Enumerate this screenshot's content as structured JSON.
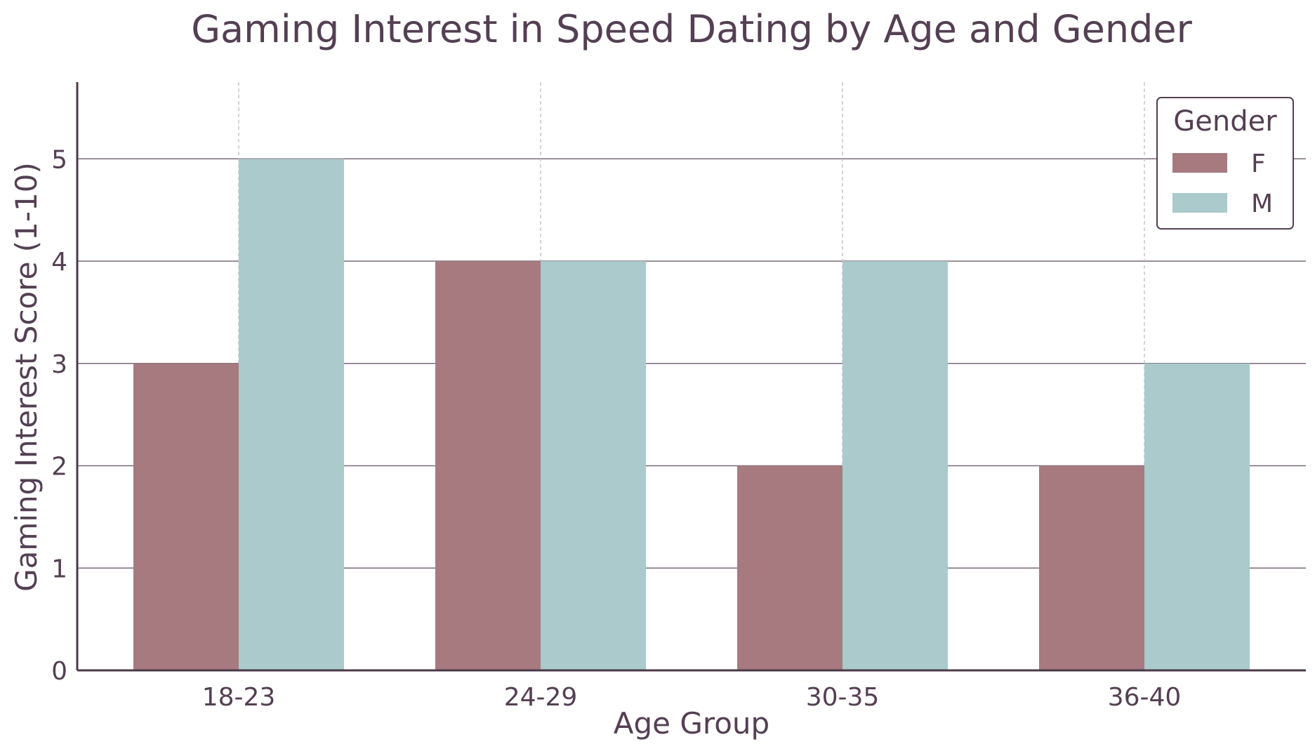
{
  "colors": {
    "text": "#543f53",
    "axis": "#4a3a4a",
    "grid": "#7a6a7a",
    "grid_dashed": "#b8b8b8",
    "female": "#a77a7f",
    "male": "#aacacb"
  },
  "legend": {
    "title": "Gender",
    "placement": "top-right",
    "entries": [
      {
        "label": "F",
        "color": "#a77a7f"
      },
      {
        "label": "M",
        "color": "#aacacb"
      }
    ]
  },
  "chart_data": {
    "type": "bar",
    "title": "Gaming Interest in Speed Dating by Age and Gender",
    "xlabel": "Age Group",
    "ylabel": "Gaming Interest Score (1-10)",
    "categories": [
      "18-23",
      "24-29",
      "30-35",
      "36-40"
    ],
    "series": [
      {
        "name": "F",
        "values": [
          3,
          4,
          2,
          2
        ]
      },
      {
        "name": "M",
        "values": [
          5,
          4,
          4,
          3
        ]
      }
    ],
    "ylim": [
      0,
      5.75
    ],
    "yticks": [
      0,
      1,
      2,
      3,
      4,
      5
    ],
    "grid": {
      "y": true,
      "x": "dashed"
    }
  }
}
